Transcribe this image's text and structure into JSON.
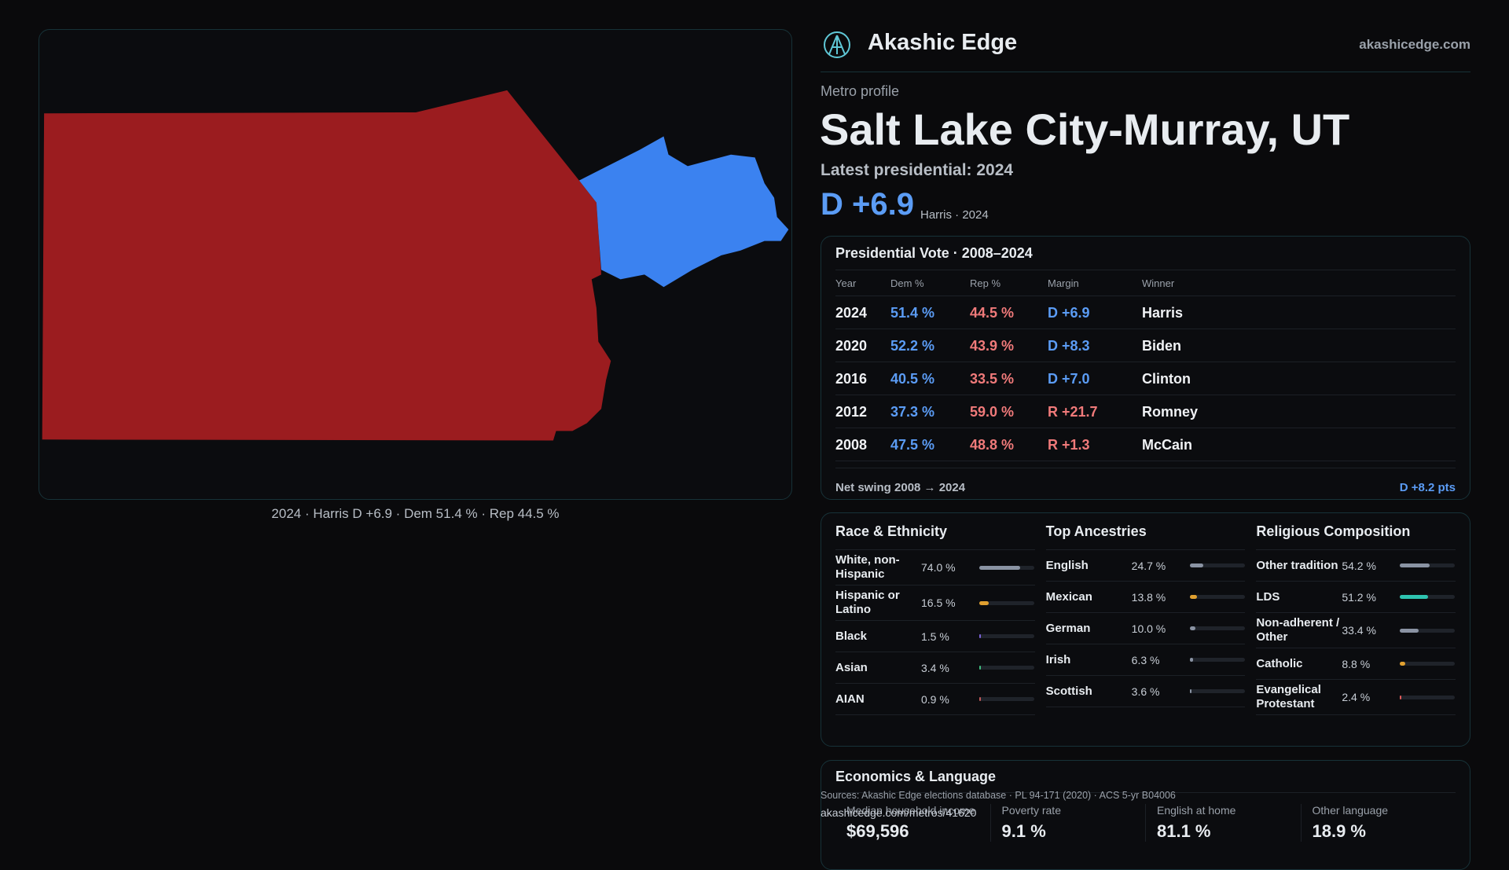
{
  "header": {
    "brand": "Akashic Edge",
    "site": "akashicedge.com"
  },
  "profile": {
    "kicker": "Metro profile",
    "title": "Salt Lake City-Murray, UT",
    "latest": "Latest presidential: 2024",
    "margin": "D +6.9",
    "margin_note": "Harris · 2024"
  },
  "map": {
    "caption": "2024 · Harris D +6.9 · Dem 51.4 % · Rep 44.5 %"
  },
  "vote_table": {
    "title": "Presidential Vote · 2008–2024",
    "columns": [
      "Year",
      "Dem %",
      "Rep %",
      "Margin",
      "Winner"
    ],
    "rows": [
      [
        "2024",
        "51.4 %",
        "44.5 %",
        "D +6.9",
        "Harris"
      ],
      [
        "2020",
        "52.2 %",
        "43.9 %",
        "D +8.3",
        "Biden"
      ],
      [
        "2016",
        "40.5 %",
        "33.5 %",
        "D +7.0",
        "Clinton"
      ],
      [
        "2012",
        "37.3 %",
        "59.0 %",
        "R +21.7",
        "Romney"
      ],
      [
        "2008",
        "47.5 %",
        "48.8 %",
        "R +1.3",
        "McCain"
      ]
    ],
    "footer_label": "Net swing 2008 → 2024",
    "footer_value": "D +8.2 pts"
  },
  "panels": [
    {
      "title": "Race & Ethnicity",
      "rows": [
        {
          "label": "White, non-Hispanic",
          "value": 74.0,
          "value_label": "74.0 %",
          "color": "#8a93a3"
        },
        {
          "label": "Hispanic or Latino",
          "value": 16.5,
          "value_label": "16.5 %",
          "color": "#e0a030"
        },
        {
          "label": "Black",
          "value": 1.5,
          "value_label": "1.5 %",
          "color": "#7b62d8"
        },
        {
          "label": "Asian",
          "value": 3.4,
          "value_label": "3.4 %",
          "color": "#3fbf7f"
        },
        {
          "label": "AIAN",
          "value": 0.9,
          "value_label": "0.9 %",
          "color": "#c45a5a"
        }
      ]
    },
    {
      "title": "Top Ancestries",
      "rows": [
        {
          "label": "English",
          "value": 24.7,
          "value_label": "24.7 %",
          "color": "#8a93a3"
        },
        {
          "label": "Mexican",
          "value": 13.8,
          "value_label": "13.8 %",
          "color": "#e0a030"
        },
        {
          "label": "German",
          "value": 10.0,
          "value_label": "10.0 %",
          "color": "#8a93a3"
        },
        {
          "label": "Irish",
          "value": 6.3,
          "value_label": "6.3 %",
          "color": "#8a93a3"
        },
        {
          "label": "Scottish",
          "value": 3.6,
          "value_label": "3.6 %",
          "color": "#8a93a3"
        }
      ]
    },
    {
      "title": "Religious Composition",
      "rows": [
        {
          "label": "Other tradition",
          "value": 54.2,
          "value_label": "54.2 %",
          "color": "#8a93a3"
        },
        {
          "label": "LDS",
          "value": 51.2,
          "value_label": "51.2 %",
          "color": "#2ec4b0"
        },
        {
          "label": "Non-adherent / Other",
          "value": 33.4,
          "value_label": "33.4 %",
          "color": "#8a93a3"
        },
        {
          "label": "Catholic",
          "value": 8.8,
          "value_label": "8.8 %",
          "color": "#e0a030"
        },
        {
          "label": "Evangelical Protestant",
          "value": 2.4,
          "value_label": "2.4 %",
          "color": "#e05a5a"
        }
      ]
    }
  ],
  "economics": {
    "title": "Economics & Language",
    "stats": [
      {
        "label": "Median household income",
        "value": "$69,596"
      },
      {
        "label": "Poverty rate",
        "value": "9.1 %"
      },
      {
        "label": "English at home",
        "value": "81.1 %"
      },
      {
        "label": "Other language",
        "value": "18.9 %"
      }
    ],
    "sources": "Sources: Akashic Edge elections database · PL 94-171 (2020) · ACS 5-yr B04006",
    "link": "akashicedge.com/metros/41620"
  }
}
